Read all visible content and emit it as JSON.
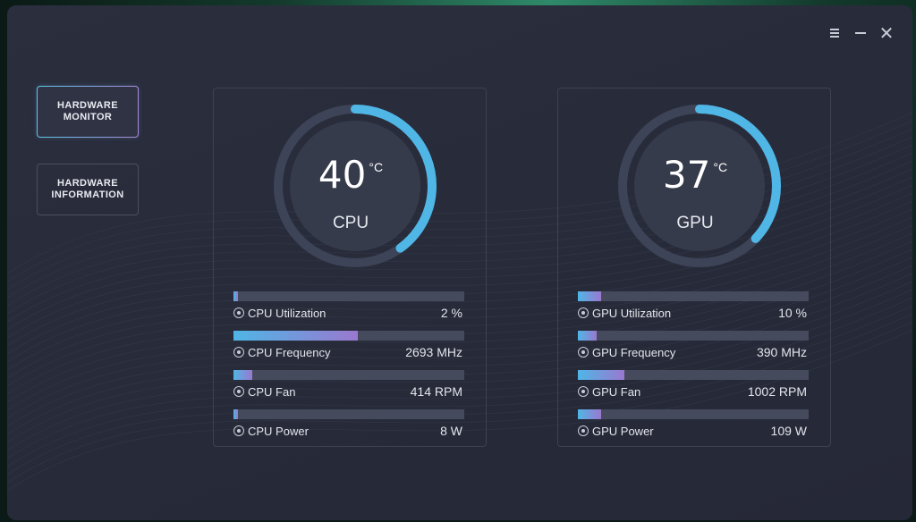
{
  "window": {
    "controls": {
      "menu_icon": "menu-icon",
      "minimize_icon": "minimize-icon",
      "close_icon": "close-icon",
      "close_glyph": "✕"
    }
  },
  "nav": {
    "items": [
      {
        "label": "HARDWARE\nMONITOR",
        "active": true
      },
      {
        "label": "HARDWARE\nINFORMATION",
        "active": false
      }
    ]
  },
  "colors": {
    "accent": "#4fb6e6",
    "accent2": "#9a78cf",
    "gauge_ring": "#3e4458",
    "gauge_inner": "#363b4c"
  },
  "cpu": {
    "temperature": "40",
    "unit": "°C",
    "label": "CPU",
    "gauge_level": 0.4,
    "metrics": [
      {
        "name": "CPU Utilization",
        "value": "2 %",
        "level": 0.02,
        "icon": "gauge-icon"
      },
      {
        "name": "CPU Frequency",
        "value": "2693 MHz",
        "level": 0.54,
        "icon": "frequency-icon"
      },
      {
        "name": "CPU Fan",
        "value": "414 RPM",
        "level": 0.08,
        "icon": "fan-icon"
      },
      {
        "name": "CPU Power",
        "value": "8 W",
        "level": 0.01,
        "icon": "power-icon"
      }
    ]
  },
  "gpu": {
    "temperature": "37",
    "unit": "°C",
    "label": "GPU",
    "gauge_level": 0.37,
    "metrics": [
      {
        "name": "GPU Utilization",
        "value": "10 %",
        "level": 0.1,
        "icon": "gauge-icon"
      },
      {
        "name": "GPU Frequency",
        "value": "390 MHz",
        "level": 0.08,
        "icon": "frequency-icon"
      },
      {
        "name": "GPU Fan",
        "value": "1002 RPM",
        "level": 0.2,
        "icon": "fan-icon"
      },
      {
        "name": "GPU Power",
        "value": "109 W",
        "level": 0.1,
        "icon": "power-icon"
      }
    ]
  }
}
